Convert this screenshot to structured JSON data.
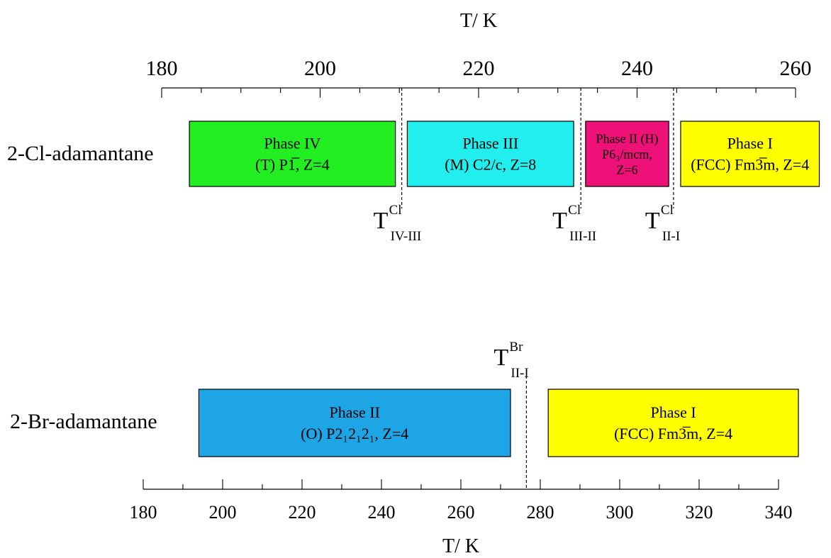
{
  "chart_data": {
    "type": "diagram",
    "title": "",
    "top_axis": {
      "label": "T/ K",
      "range": [
        180,
        260
      ],
      "major_ticks": [
        180,
        200,
        220,
        240,
        260
      ],
      "minor_step": 5
    },
    "bottom_axis": {
      "label": "T/ K",
      "range": [
        180,
        340
      ],
      "major_ticks": [
        180,
        200,
        220,
        240,
        260,
        280,
        300,
        320,
        340
      ],
      "minor_step": 10
    },
    "compounds": [
      {
        "name": "2-Cl-adamantane",
        "axis": "top",
        "phases": [
          {
            "name": "Phase IV",
            "lines": [
              "(T) P1̅, Z=4"
            ],
            "start": 183.5,
            "end": 209.5,
            "color": "#22ee22"
          },
          {
            "name": "Phase III",
            "lines": [
              "(M) C2/c, Z=8"
            ],
            "start": 211,
            "end": 232,
            "color": "#22eeee"
          },
          {
            "name": "Phase II (H)",
            "lines": [
              "P6₃/mcm,",
              "Z=6"
            ],
            "start": 233.5,
            "end": 244,
            "color": "#ee1177"
          },
          {
            "name": "Phase I",
            "lines": [
              "(FCC) Fm3̅m, Z=4"
            ],
            "start": 245.5,
            "end": 263,
            "color": "#ffff00"
          }
        ],
        "transitions": [
          {
            "temp": 210.3,
            "label": "T",
            "sup": "Cl",
            "sub": "IV-III"
          },
          {
            "temp": 232.9,
            "label": "T",
            "sup": "Cl",
            "sub": "III-II"
          },
          {
            "temp": 244.6,
            "label": "T",
            "sup": "Cl",
            "sub": "II-I"
          }
        ]
      },
      {
        "name": "2-Br-adamantane",
        "axis": "bottom",
        "phases": [
          {
            "name": "Phase II",
            "lines": [
              "(O) P2₁2₁2₁,  Z=4"
            ],
            "start": 194,
            "end": 272.5,
            "color": "#1ea5e6"
          },
          {
            "name": "Phase I",
            "lines": [
              "(FCC) Fm3̅m, Z=4"
            ],
            "start": 282,
            "end": 345,
            "color": "#ffff00"
          }
        ],
        "transitions": [
          {
            "temp": 276.5,
            "label": "T",
            "sup": "Br",
            "sub": "II-I"
          }
        ]
      }
    ]
  }
}
